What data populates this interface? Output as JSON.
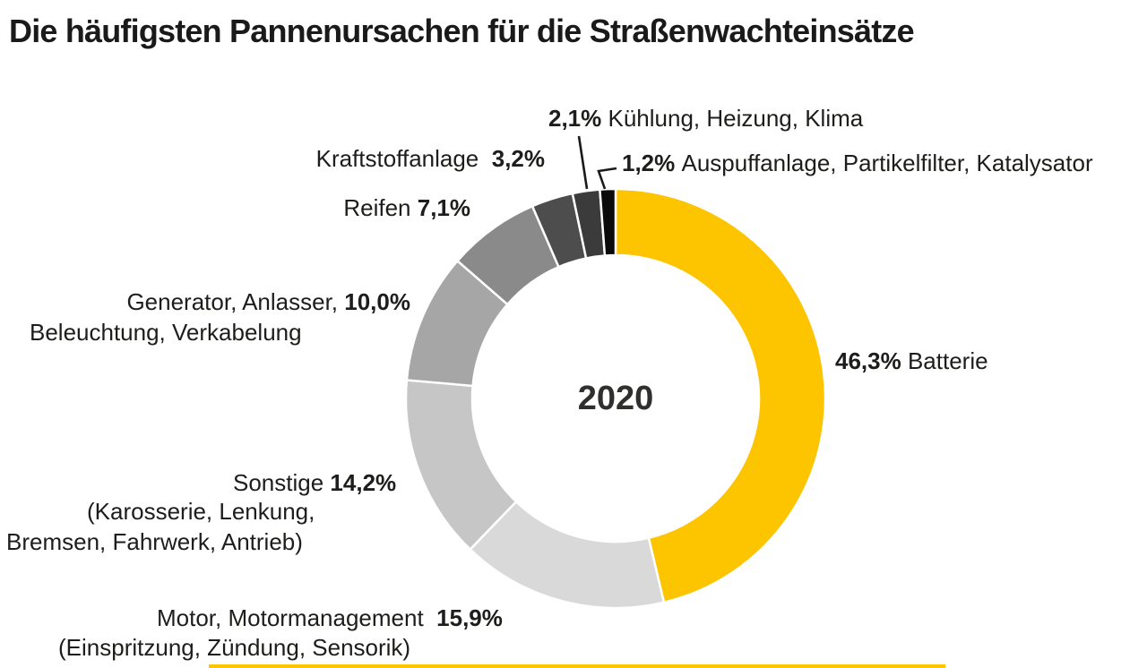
{
  "title": "Die häufigsten Pannenursachen für die Straßenwachteinsätze",
  "colors": {
    "accent_yellow": "#FDC400",
    "text": "#1d1d1b",
    "leader_line": "#1a1a1a",
    "separator": "#ffffff"
  },
  "chart_data": {
    "type": "pie",
    "subtype": "donut",
    "title": "Die häufigsten Pannenursachen für die Straßenwachteinsätze",
    "center_label": "2020",
    "unit": "%",
    "start_angle_deg": 0,
    "direction": "clockwise",
    "legend": "none",
    "segments": [
      {
        "id": "batterie",
        "label": "Batterie",
        "value": 46.3,
        "display": "46,3%",
        "color": "#FDC400"
      },
      {
        "id": "motor",
        "label": "Motor, Motormanagement (Einspritzung, Zündung, Sensorik)",
        "value": 15.9,
        "display": "15,9%",
        "color": "#D9D9D9"
      },
      {
        "id": "sonstige",
        "label": "Sonstige (Karosserie, Lenkung, Bremsen, Fahrwerk, Antrieb)",
        "value": 14.2,
        "display": "14,2%",
        "color": "#C6C6C6"
      },
      {
        "id": "generator",
        "label": "Generator, Anlasser, Beleuchtung, Verkabelung",
        "value": 10.0,
        "display": "10,0%",
        "color": "#A6A6A6"
      },
      {
        "id": "reifen",
        "label": "Reifen",
        "value": 7.1,
        "display": "7,1%",
        "color": "#8A8A8A"
      },
      {
        "id": "kraftstoff",
        "label": "Kraftstoffanlage",
        "value": 3.2,
        "display": "3,2%",
        "color": "#4D4D4D"
      },
      {
        "id": "kuehlung",
        "label": "Kühlung, Heizung, Klima",
        "value": 2.1,
        "display": "2,1%",
        "color": "#3B3B3B"
      },
      {
        "id": "auspuff",
        "label": "Auspuffanlage, Partikelfilter, Katalysator",
        "value": 1.2,
        "display": "1,2%",
        "color": "#0A0A0A"
      }
    ]
  },
  "center_label": "2020",
  "callouts": {
    "kuehlung": {
      "pct": "2,1%",
      "label": "Kühlung, Heizung, Klima"
    },
    "auspuff": {
      "pct": "1,2%",
      "label": "Auspuffanlage, Partikelfilter, Katalysator"
    },
    "kraftstoff": {
      "label": "Kraftstoffanlage",
      "pct": "3,2%"
    },
    "reifen": {
      "label": "Reifen",
      "pct": "7,1%"
    },
    "generator": {
      "line1_label": "Generator, Anlasser,",
      "pct": "10,0%",
      "line2": "Beleuchtung, Verkabelung"
    },
    "sonstige": {
      "label": "Sonstige",
      "pct": "14,2%",
      "line2": "(Karosserie, Lenkung,",
      "line3": "Bremsen, Fahrwerk, Antrieb)"
    },
    "motor": {
      "label": "Motor, Motormanagement",
      "pct": "15,9%",
      "line2": "(Einspritzung, Zündung, Sensorik)"
    },
    "batterie": {
      "pct": "46,3%",
      "label": "Batterie"
    }
  }
}
